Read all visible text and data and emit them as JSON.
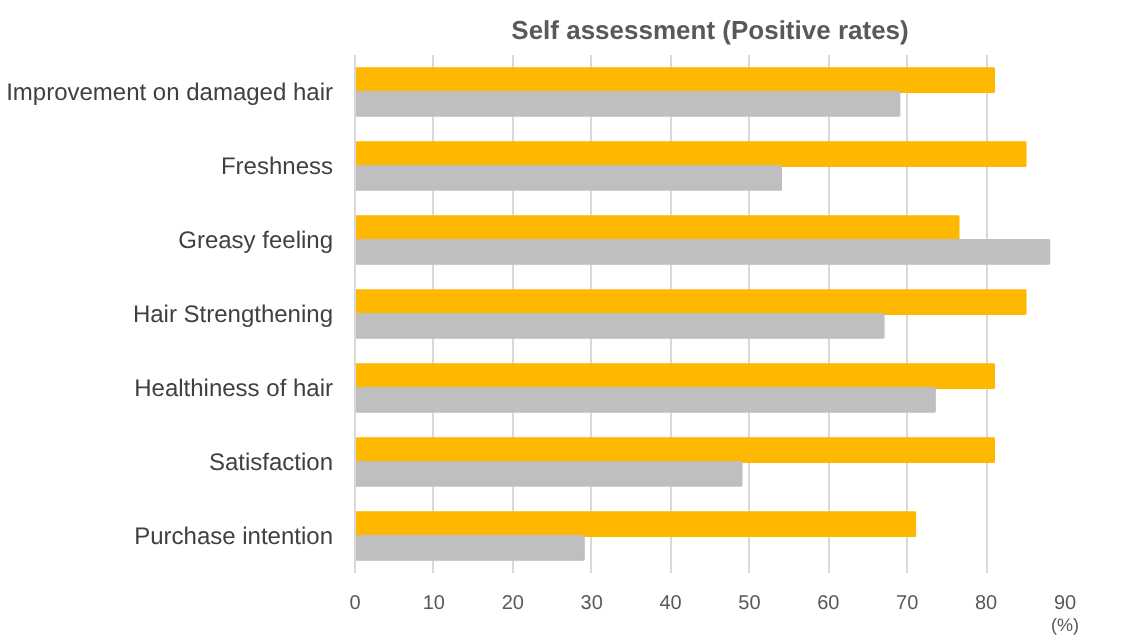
{
  "chart_data": {
    "type": "bar",
    "orientation": "horizontal",
    "title": "Self assessment (Positive rates)",
    "xlabel": "(%)",
    "categories": [
      "Improvement on damaged hair",
      "Freshness",
      "Greasy feeling",
      "Hair Strengthening",
      "Healthiness of hair",
      "Satisfaction",
      "Purchase intention"
    ],
    "series": [
      {
        "color": "#ffb800",
        "values": [
          81,
          85,
          76.5,
          85,
          81,
          81,
          71
        ]
      },
      {
        "color": "#bfbfbf",
        "values": [
          69,
          54,
          88,
          67,
          73.5,
          49,
          29
        ]
      }
    ],
    "xlim": [
      0,
      90
    ],
    "xticks": [
      0,
      10,
      20,
      30,
      40,
      50,
      60,
      70,
      80,
      90
    ],
    "grid": "x"
  }
}
